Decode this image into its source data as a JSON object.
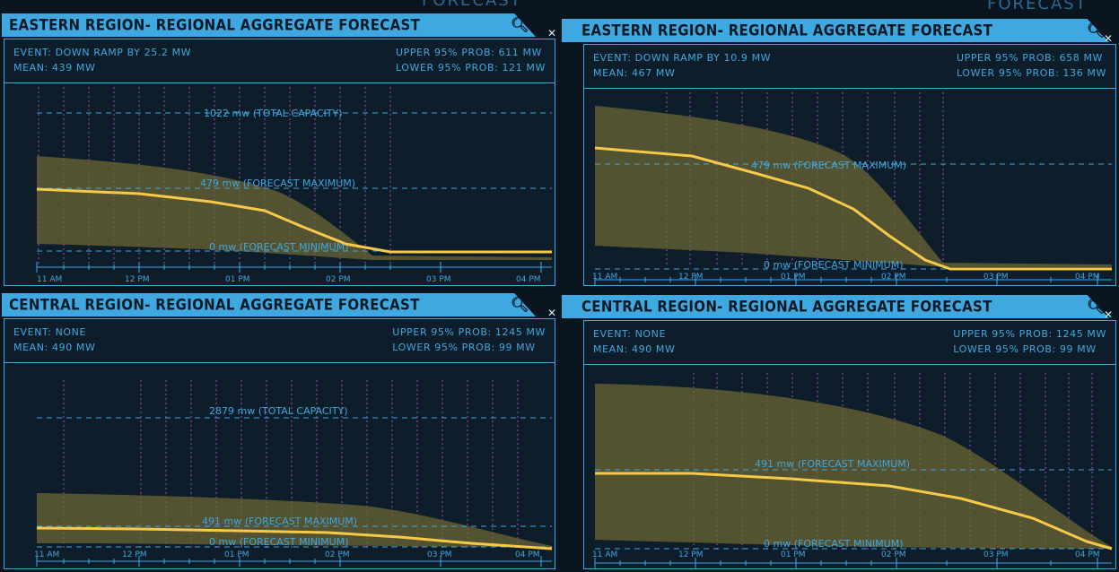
{
  "deco": {
    "left_label": "FORECAST",
    "right_label": "FORECAST"
  },
  "panels": [
    {
      "id": "eastern-zoomed-in",
      "title": "EASTERN REGION- REGIONAL AGGREGATE FORECAST",
      "zoom_icon": "zoom-in-icon",
      "event": "EVENT: DOWN RAMP BY 25.2 MW",
      "mean": "MEAN: 439 mw",
      "upper": "UPPER 95% PROB: 611 mw",
      "lower": "LOWER 95% PROB: 121 mw",
      "ref_lines": [
        {
          "label": "1022 mw (TOTAL CAPACITY)"
        },
        {
          "label": "479 mw (FORECAST MAXIMUM)"
        },
        {
          "label": "0 mw (FORECAST MINIMUM)"
        }
      ],
      "x_ticks": [
        "11 AM",
        "12 PM",
        "01 PM",
        "02 PM",
        "03 PM",
        "04 PM"
      ]
    },
    {
      "id": "eastern-zoomed-out",
      "title": "EASTERN REGION- REGIONAL AGGREGATE FORECAST",
      "zoom_icon": "zoom-out-icon",
      "event": "EVENT: DOWN RAMP BY 10.9 MW",
      "mean": "MEAN: 467 mw",
      "upper": "UPPER 95% PROB: 658 mw",
      "lower": "LOWER 95% PROB: 136 mw",
      "ref_lines": [
        {
          "label": "479 mw (FORECAST MAXIMUM)"
        },
        {
          "label": "0 mw (FORECAST MINIMUM)"
        }
      ],
      "x_ticks": [
        "11 AM",
        "12 PM",
        "01 PM",
        "02 PM",
        "03 PM",
        "04 PM"
      ]
    },
    {
      "id": "central-zoomed-in",
      "title": "CENTRAL REGION- REGIONAL AGGREGATE FORECAST",
      "zoom_icon": "zoom-in-icon",
      "event": "EVENT: NONE",
      "mean": "MEAN: 490 mw",
      "upper": "UPPER 95% PROB: 1245 mw",
      "lower": "LOWER 95% PROB: 99 mw",
      "ref_lines": [
        {
          "label": "2879 mw (TOTAL CAPACITY)"
        },
        {
          "label": "491 mw (FORECAST MAXIMUM)"
        },
        {
          "label": "0 mw (FORECAST MINIMUM)"
        }
      ],
      "x_ticks": [
        "11 AM",
        "12 PM",
        "01 PM",
        "02 PM",
        "03 PM",
        "04 PM"
      ]
    },
    {
      "id": "central-zoomed-out",
      "title": "CENTRAL REGION- REGIONAL AGGREGATE FORECAST",
      "zoom_icon": "zoom-out-icon",
      "event": "EVENT: NONE",
      "mean": "MEAN: 490 mw",
      "upper": "UPPER 95% PROB: 1245 mw",
      "lower": "LOWER 95% PROB: 99 mw",
      "ref_lines": [
        {
          "label": "491 mw (FORECAST MAXIMUM)"
        },
        {
          "label": "0 mw (FORECAST MINIMUM)"
        }
      ],
      "x_ticks": [
        "11 AM",
        "12 PM",
        "01 PM",
        "02 PM",
        "03 PM",
        "04 PM"
      ]
    }
  ],
  "colors": {
    "accent": "#3fa8e0",
    "forecast_line": "#f7c948",
    "band": "#6b6434",
    "guide_lines": "#c25ce0"
  }
}
